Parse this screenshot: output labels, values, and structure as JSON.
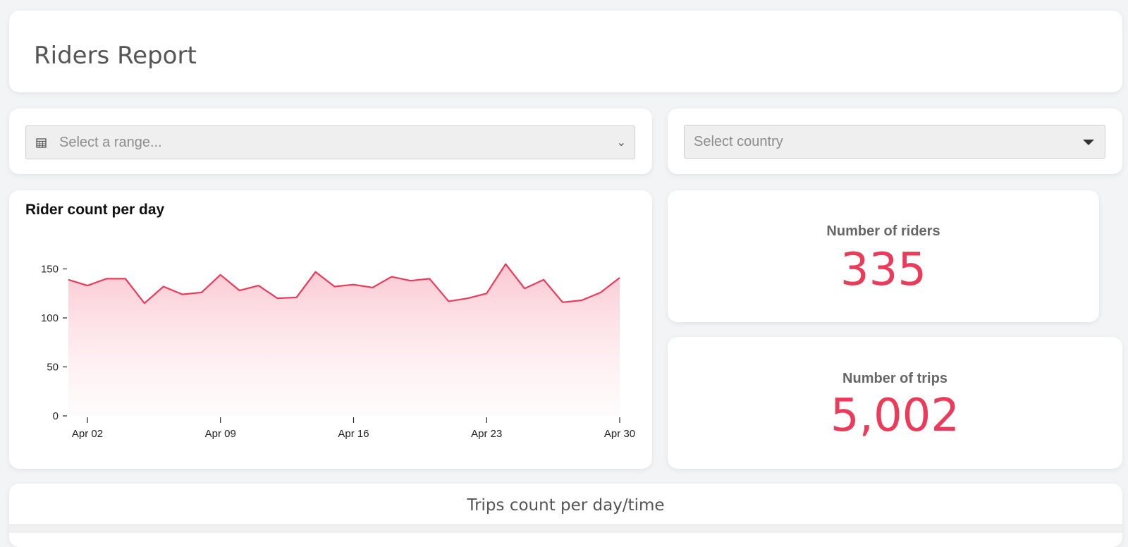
{
  "header": {
    "title": "Riders Report"
  },
  "filters": {
    "range_placeholder": "Select a range...",
    "country_placeholder": "Select country"
  },
  "stats": {
    "riders_label": "Number of riders",
    "riders_value": "335",
    "trips_label": "Number of trips",
    "trips_value": "5,002"
  },
  "trips_section": {
    "title": "Trips count per day/time"
  },
  "colors": {
    "accent": "#ea3b5a",
    "fill": "#fcd0d7"
  },
  "icons": {
    "calendar": "calendar-icon",
    "range_chevron": "chevron-down-icon",
    "country_caret": "caret-down-icon"
  },
  "chart_data": {
    "type": "area",
    "title": "Rider count per day",
    "xlabel": "",
    "ylabel": "",
    "x": [
      "Apr 01",
      "Apr 02",
      "Apr 03",
      "Apr 04",
      "Apr 05",
      "Apr 06",
      "Apr 07",
      "Apr 08",
      "Apr 09",
      "Apr 10",
      "Apr 11",
      "Apr 12",
      "Apr 13",
      "Apr 14",
      "Apr 15",
      "Apr 16",
      "Apr 17",
      "Apr 18",
      "Apr 19",
      "Apr 20",
      "Apr 21",
      "Apr 22",
      "Apr 23",
      "Apr 24",
      "Apr 25",
      "Apr 26",
      "Apr 27",
      "Apr 28",
      "Apr 29",
      "Apr 30"
    ],
    "values": [
      139,
      133,
      140,
      140,
      115,
      132,
      124,
      126,
      144,
      128,
      133,
      120,
      121,
      147,
      132,
      134,
      131,
      142,
      138,
      140,
      117,
      120,
      125,
      155,
      130,
      139,
      116,
      118,
      126,
      141
    ],
    "x_ticks": [
      "Apr 02",
      "Apr 09",
      "Apr 16",
      "Apr 23",
      "Apr 30"
    ],
    "y_ticks": [
      0,
      50,
      100,
      150
    ],
    "ylim": [
      0,
      160
    ],
    "grid": false,
    "legend": "none"
  }
}
